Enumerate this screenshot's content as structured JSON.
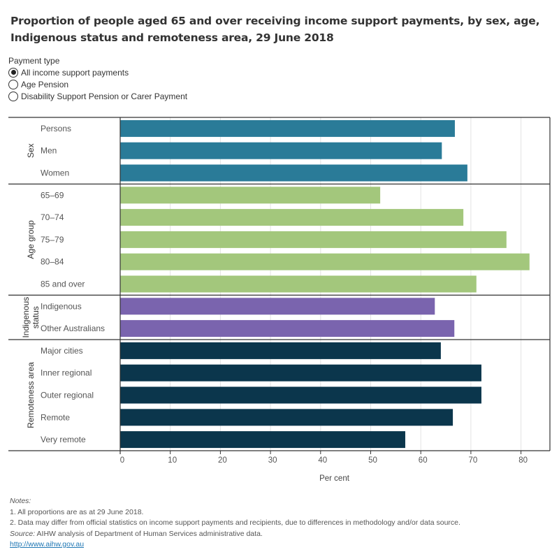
{
  "title": "Proportion of people aged 65 and over receiving income support payments, by sex, age, Indigenous status and remoteness area, 29 June 2018",
  "filter": {
    "label": "Payment type",
    "options": [
      {
        "label": "All income support payments",
        "selected": true
      },
      {
        "label": "Age Pension",
        "selected": false
      },
      {
        "label": "Disability Support Pension or Carer Payment",
        "selected": false
      }
    ]
  },
  "chart_data": {
    "type": "bar",
    "orientation": "horizontal",
    "title": "Proportion of people aged 65 and over receiving income support payments, by sex, age, Indigenous status and remoteness area, 29 June 2018",
    "xlabel": "Per cent",
    "ylabel": "",
    "xlim": [
      0,
      86
    ],
    "xticks": [
      0,
      10,
      20,
      30,
      40,
      50,
      60,
      70,
      80
    ],
    "grid": true,
    "groups": [
      {
        "name": "Sex",
        "color": "#2a7b98",
        "categories": [
          "Persons",
          "Men",
          "Women"
        ],
        "values": [
          66.8,
          64.2,
          69.3
        ]
      },
      {
        "name": "Age group",
        "color": "#a3c77c",
        "categories": [
          "65–69",
          "70–74",
          "75–79",
          "80–84",
          "85 and over"
        ],
        "values": [
          51.9,
          68.5,
          77.1,
          81.7,
          71.1
        ]
      },
      {
        "name": "Indigenous status",
        "name_lines": [
          "Indigenous",
          "status"
        ],
        "color": "#7a64ae",
        "categories": [
          "Indigenous",
          "Other Australians"
        ],
        "values": [
          62.8,
          66.7
        ]
      },
      {
        "name": "Remoteness area",
        "color": "#0b364c",
        "categories": [
          "Major cities",
          "Inner regional",
          "Outer regional",
          "Remote",
          "Very remote"
        ],
        "values": [
          64.0,
          72.1,
          72.1,
          66.4,
          56.9
        ]
      }
    ]
  },
  "notes": {
    "heading": "Notes:",
    "lines": [
      "1. All proportions are as at 29 June 2018.",
      "2. Data may differ from official statistics on income support payments and recipients, due to differences in methodology and/or data source."
    ],
    "source_label": "Source:",
    "source_text": " AIHW analysis of Department of Human Services administrative data.",
    "link": "http://www.aihw.gov.au"
  }
}
